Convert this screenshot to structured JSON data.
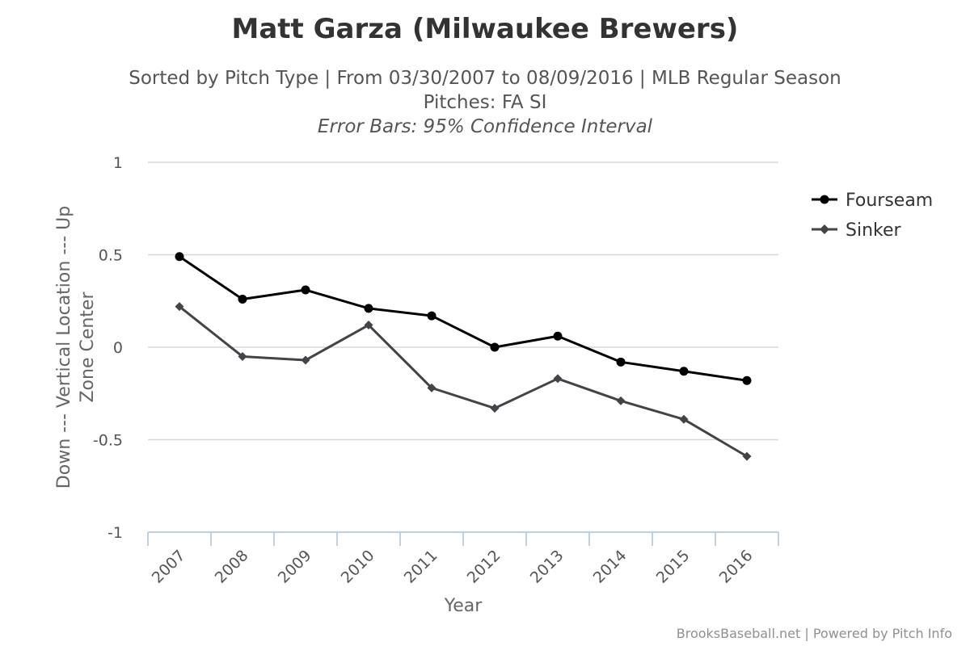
{
  "chart_data": {
    "type": "line",
    "title": "Matt Garza (Milwaukee Brewers)",
    "subtitle_lines": [
      "Sorted by Pitch Type | From 03/30/2007 to 08/09/2016 | MLB Regular Season",
      "Pitches: FA SI",
      "Error Bars: 95% Confidence Interval"
    ],
    "xlabel": "Year",
    "ylabel_lines": [
      "Down --- Vertical Location --- Up",
      "Zone Center"
    ],
    "categories": [
      "2007",
      "2008",
      "2009",
      "2010",
      "2011",
      "2012",
      "2013",
      "2014",
      "2015",
      "2016"
    ],
    "ylim": [
      -1,
      1
    ],
    "yticks": [
      1,
      0.5,
      0,
      -0.5,
      -1
    ],
    "ytick_labels": [
      "1",
      "0.5",
      "0",
      "-0.5",
      "-1"
    ],
    "grid": true,
    "legend_position": "right",
    "series": [
      {
        "name": "Fourseam",
        "color": "#000000",
        "marker": "circle",
        "values": [
          0.49,
          0.26,
          0.31,
          0.21,
          0.17,
          0.0,
          0.06,
          -0.08,
          -0.13,
          -0.18
        ]
      },
      {
        "name": "Sinker",
        "color": "#434348",
        "marker": "diamond",
        "values": [
          0.22,
          -0.05,
          -0.07,
          0.12,
          -0.22,
          -0.33,
          -0.17,
          -0.29,
          -0.39,
          -0.59
        ]
      }
    ],
    "credits": "BrooksBaseball.net | Powered by Pitch Info"
  }
}
